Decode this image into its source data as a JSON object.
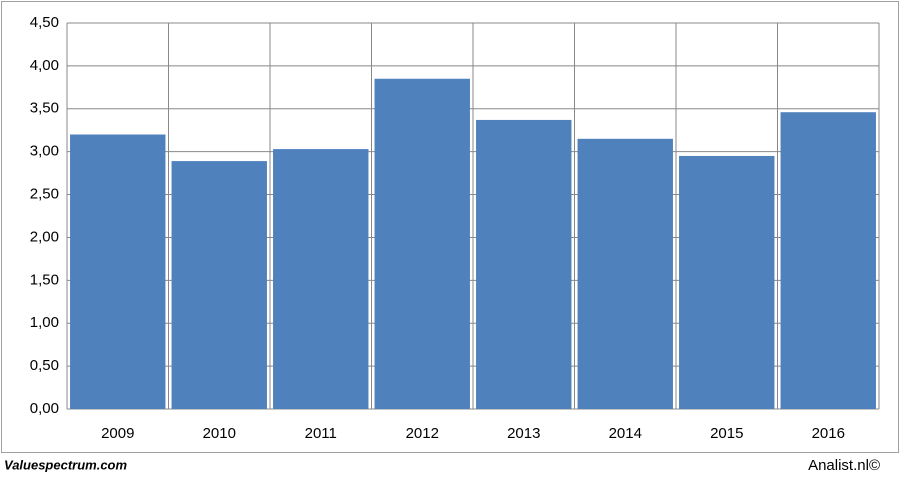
{
  "chart_data": {
    "type": "bar",
    "categories": [
      "2009",
      "2010",
      "2011",
      "2012",
      "2013",
      "2014",
      "2015",
      "2016"
    ],
    "values": [
      3.2,
      2.89,
      3.03,
      3.85,
      3.37,
      3.15,
      2.95,
      3.46
    ],
    "color": "#4f81bd",
    "ylim": [
      0,
      4.5
    ],
    "yticks": [
      {
        "value": 0,
        "label": "0,00"
      },
      {
        "value": 0.5,
        "label": "0,50"
      },
      {
        "value": 1,
        "label": "1,00"
      },
      {
        "value": 1.5,
        "label": "1,50"
      },
      {
        "value": 2,
        "label": "2,00"
      },
      {
        "value": 2.5,
        "label": "2,50"
      },
      {
        "value": 3,
        "label": "3,00"
      },
      {
        "value": 3.5,
        "label": "3,50"
      },
      {
        "value": 4,
        "label": "4,00"
      },
      {
        "value": 4.5,
        "label": "4,50"
      }
    ],
    "grid": true
  },
  "footer": {
    "left": "Valuespectrum.com",
    "right": "Analist.nl©"
  }
}
